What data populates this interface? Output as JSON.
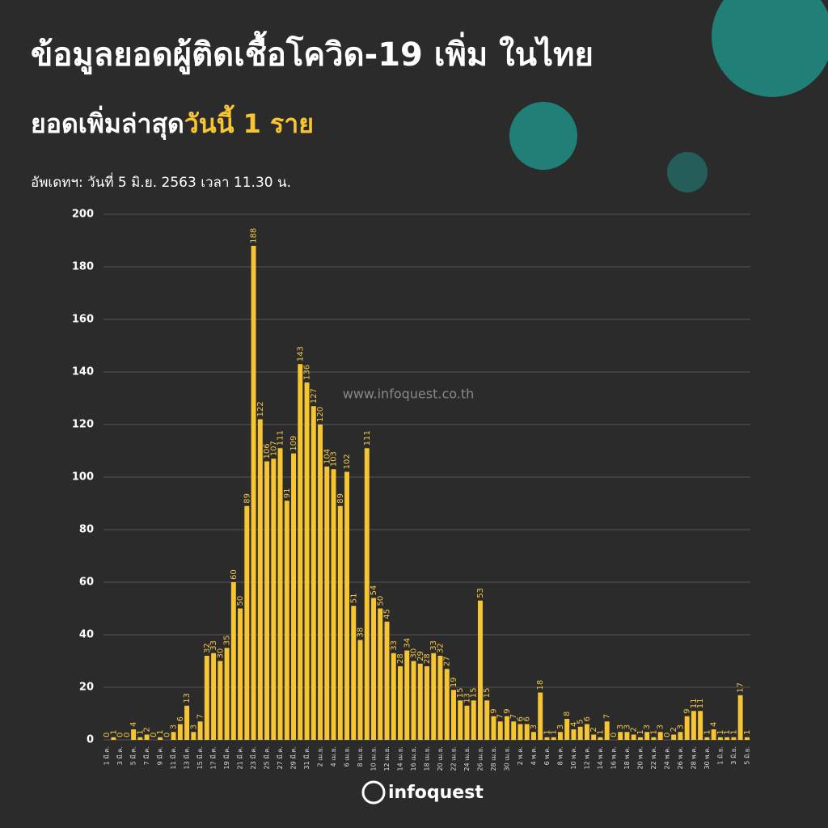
{
  "chart_data": {
    "type": "bar",
    "title": "ข้อมูลยอดผู้ติดเชื้อโควิด-19 เพิ่ม ในไทย",
    "subtitle": "ยอดเพิ่มล่าสุด",
    "subtitle_highlight": "วันนี้ 1 ราย",
    "update_note": "อัพเดทฯ: วันที่ 5 มิ.ย. 2563 เวลา 11.30 น.",
    "watermark": "www.infoquest.co.th",
    "logo": "infoquest",
    "color": "#f7c531",
    "ylim": [
      0,
      200
    ],
    "yticks": [
      0,
      20,
      40,
      60,
      80,
      100,
      120,
      140,
      160,
      180,
      200
    ],
    "grid": true,
    "categories": [
      "1 มี.ค.",
      null,
      "3 มี.ค.",
      null,
      "5 มี.ค.",
      null,
      "7 มี.ค.",
      null,
      "9 มี.ค.",
      null,
      "11 มี.ค.",
      null,
      "13 มี.ค.",
      null,
      "15 มี.ค.",
      null,
      "17 มี.ค.",
      null,
      "19 มี.ค.",
      null,
      "21 มี.ค.",
      null,
      "23 มี.ค.",
      null,
      "25 มี.ค.",
      null,
      "27 มี.ค.",
      null,
      "29 มี.ค.",
      null,
      "31 มี.ค.",
      null,
      "2 เม.ย.",
      null,
      "4 เม.ย.",
      null,
      "6 เม.ย.",
      null,
      "8 เม.ย.",
      null,
      "10 เม.ย.",
      null,
      "12 เม.ย.",
      null,
      "14 เม.ย.",
      null,
      "16 เม.ย.",
      null,
      "18 เม.ย.",
      null,
      "20 เม.ย.",
      null,
      "22 เม.ย.",
      null,
      "24 เม.ย.",
      null,
      "26 เม.ย.",
      null,
      "28 เม.ย.",
      null,
      "30 เม.ย.",
      null,
      "2 พ.ค.",
      null,
      "4 พ.ค.",
      null,
      "6 พ.ค.",
      null,
      "8 พ.ค.",
      null,
      "10 พ.ค.",
      null,
      "12 พ.ค.",
      null,
      "14 พ.ค.",
      null,
      "16 พ.ค.",
      null,
      "18 พ.ค.",
      null,
      "20 พ.ค.",
      null,
      "22 พ.ค.",
      null,
      "24 พ.ค.",
      null,
      "26 พ.ค.",
      null,
      "28 พ.ค.",
      null,
      "30 พ.ค.",
      null,
      "1 มิ.ย.",
      null,
      "3 มิ.ย.",
      null,
      "5 มิ.ย."
    ],
    "values": [
      0,
      1,
      0,
      0,
      4,
      1,
      2,
      0,
      1,
      0,
      3,
      6,
      13,
      3,
      7,
      32,
      33,
      30,
      35,
      60,
      50,
      89,
      188,
      122,
      106,
      107,
      111,
      91,
      109,
      143,
      136,
      127,
      120,
      104,
      103,
      89,
      102,
      51,
      38,
      111,
      54,
      50,
      45,
      33,
      28,
      34,
      30,
      29,
      28,
      33,
      32,
      27,
      19,
      15,
      13,
      15,
      53,
      15,
      9,
      7,
      9,
      7,
      6,
      6,
      3,
      18,
      1,
      1,
      3,
      8,
      4,
      5,
      6,
      2,
      1,
      7,
      0,
      3,
      3,
      2,
      1,
      3,
      1,
      3,
      0,
      2,
      3,
      9,
      11,
      11,
      1,
      4,
      1,
      1,
      1,
      17,
      1
    ]
  }
}
